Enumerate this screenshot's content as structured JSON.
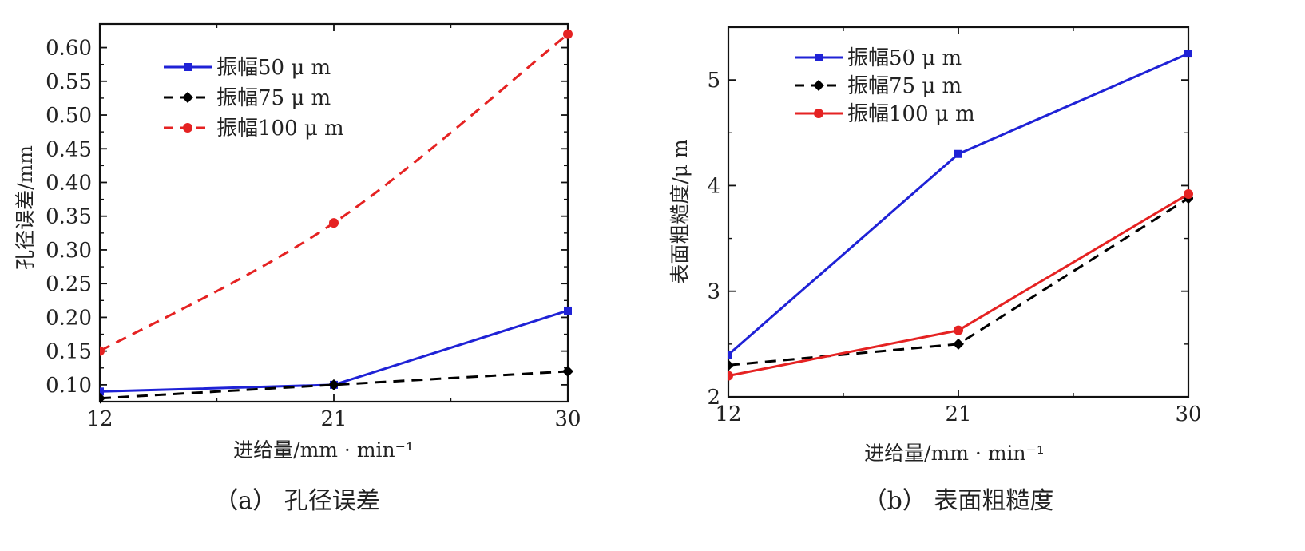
{
  "colors": {
    "blue": "#1f22d6",
    "black": "#000000",
    "red": "#e52222"
  },
  "chart_data": [
    {
      "type": "line",
      "panel": "a",
      "caption": "（a） 孔径误差",
      "xlabel": "进给量/mm · min⁻¹",
      "ylabel": "孔径误差/mm",
      "x": [
        12,
        21,
        30
      ],
      "xticks": [
        "12",
        "21",
        "30"
      ],
      "xlim": [
        12,
        30
      ],
      "ylim": [
        0.075,
        0.635
      ],
      "yticks": [
        0.1,
        0.15,
        0.2,
        0.25,
        0.3,
        0.35,
        0.4,
        0.45,
        0.5,
        0.55,
        0.6
      ],
      "ytick_labels": [
        "0.10",
        "0.15",
        "0.20",
        "0.25",
        "0.30",
        "0.35",
        "0.40",
        "0.45",
        "0.50",
        "0.55",
        "0.60"
      ],
      "legend_position": "top-left",
      "series": [
        {
          "name": "振幅50 μ m",
          "values": [
            0.09,
            0.1,
            0.21
          ],
          "color": "#1f22d6",
          "dash": "solid",
          "marker": "square",
          "shape": "line"
        },
        {
          "name": "振幅75 μ m",
          "values": [
            0.08,
            0.1,
            0.12
          ],
          "color": "#000000",
          "dash": "dashed",
          "marker": "diamond",
          "shape": "line"
        },
        {
          "name": "振幅100 μ m",
          "values": [
            0.15,
            0.34,
            0.62
          ],
          "color": "#e52222",
          "dash": "dashed",
          "marker": "circle",
          "shape": "curve"
        }
      ]
    },
    {
      "type": "line",
      "panel": "b",
      "caption": "（b） 表面粗糙度",
      "xlabel": "进给量/mm · min⁻¹",
      "ylabel": "表面粗糙度/μ m",
      "x": [
        12,
        21,
        30
      ],
      "xticks": [
        "12",
        "21",
        "30"
      ],
      "xlim": [
        12,
        30
      ],
      "ylim": [
        2.0,
        5.5
      ],
      "yticks": [
        2,
        3,
        4,
        5
      ],
      "ytick_labels": [
        "2",
        "3",
        "4",
        "5"
      ],
      "legend_position": "top-left",
      "series": [
        {
          "name": "振幅50 μ m",
          "values": [
            2.4,
            4.3,
            5.25
          ],
          "color": "#1f22d6",
          "dash": "solid",
          "marker": "square",
          "shape": "line"
        },
        {
          "name": "振幅75 μ m",
          "values": [
            2.3,
            2.5,
            3.88
          ],
          "color": "#000000",
          "dash": "dashed",
          "marker": "diamond",
          "shape": "line"
        },
        {
          "name": "振幅100 μ m",
          "values": [
            2.2,
            2.63,
            3.92
          ],
          "color": "#e52222",
          "dash": "solid",
          "marker": "circle",
          "shape": "line"
        }
      ]
    }
  ]
}
